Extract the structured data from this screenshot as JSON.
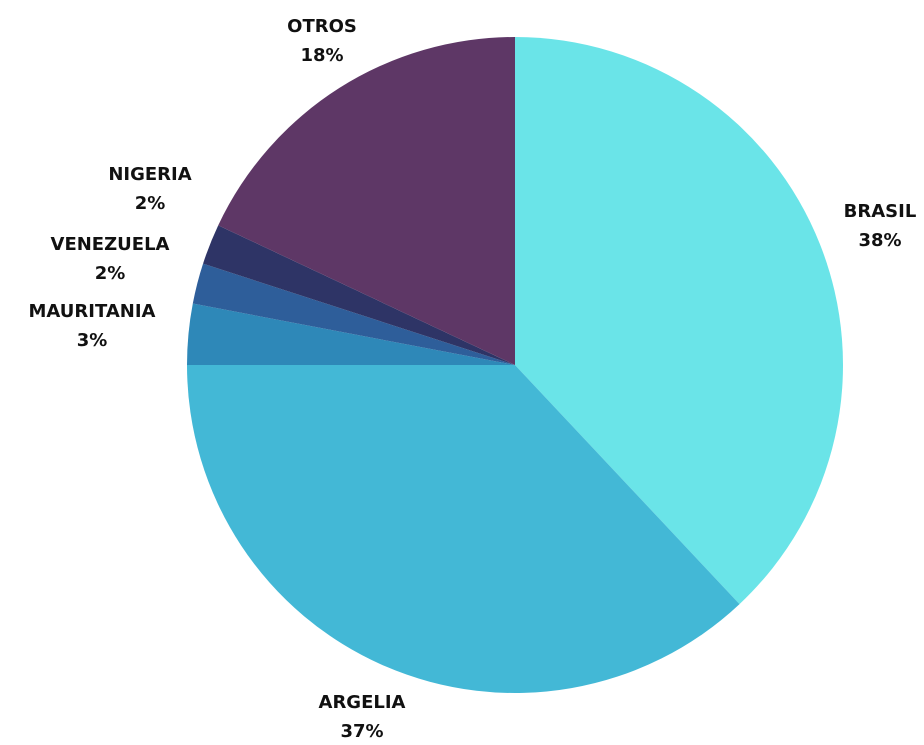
{
  "chart_data": {
    "type": "pie",
    "categories": [
      "BRASIL",
      "ARGELIA",
      "MAURITANIA",
      "VENEZUELA",
      "NIGERIA",
      "OTROS"
    ],
    "values": [
      38,
      37,
      3,
      2,
      2,
      18
    ],
    "value_labels": [
      "38%",
      "37%",
      "3%",
      "2%",
      "2%",
      "18%"
    ],
    "colors": [
      "#6ae4e8",
      "#43b8d6",
      "#2e88b8",
      "#2e5e9a",
      "#2e3466",
      "#5e3766"
    ]
  }
}
